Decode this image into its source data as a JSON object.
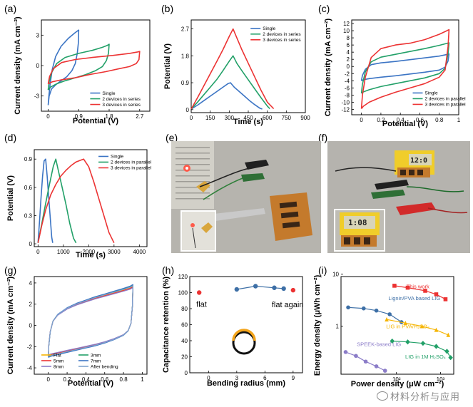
{
  "panel_letters": [
    "(a)",
    "(b)",
    "(c)",
    "(d)",
    "(e)",
    "(f)",
    "(g)",
    "(h)",
    "(i)"
  ],
  "photos": {
    "f_timer_display": "12:0",
    "f_inset_display": "1:08"
  },
  "watermark": "材料分析与应用",
  "colors": {
    "blue": "#3b74c4",
    "green": "#22a068",
    "red": "#ec3333",
    "orange": "#f5b400",
    "purple": "#8b7cc8",
    "dark": "#333333"
  },
  "chart_data": [
    {
      "id": "a",
      "type": "line",
      "xlabel": "Potential (V)",
      "ylabel": "Current density (mA cm⁻²)",
      "xlim": [
        -0.2,
        3.0
      ],
      "ylim": [
        -4.5,
        4.5
      ],
      "xticks": [
        0.0,
        0.9,
        1.8,
        2.7
      ],
      "yticks": [
        -3.0,
        0.0,
        3.0
      ],
      "legend": [
        "Single",
        "2 devices in series",
        "3 devices in series"
      ],
      "legend_position": "bottom-right",
      "series": [
        {
          "name": "Single",
          "color": "#3b74c4",
          "x": [
            0.0,
            0.02,
            0.06,
            0.12,
            0.22,
            0.38,
            0.6,
            0.78,
            0.88,
            0.9,
            0.89,
            0.86,
            0.8,
            0.7,
            0.55,
            0.38,
            0.22,
            0.1,
            0.03,
            0.0
          ],
          "y": [
            -3.9,
            -3.0,
            -1.8,
            -0.4,
            0.9,
            1.9,
            2.7,
            3.2,
            3.45,
            3.5,
            2.2,
            1.2,
            0.2,
            -0.5,
            -1.1,
            -1.5,
            -1.9,
            -2.3,
            -3.0,
            -3.9
          ]
        },
        {
          "name": "2 devices in series",
          "color": "#22a068",
          "x": [
            0.0,
            0.03,
            0.1,
            0.25,
            0.5,
            0.9,
            1.3,
            1.6,
            1.75,
            1.8,
            1.78,
            1.72,
            1.6,
            1.4,
            1.1,
            0.8,
            0.5,
            0.25,
            0.08,
            0.0
          ],
          "y": [
            -2.4,
            -1.6,
            -0.7,
            0.2,
            0.8,
            1.2,
            1.5,
            1.8,
            2.0,
            2.1,
            1.2,
            0.5,
            -0.1,
            -0.5,
            -0.9,
            -1.2,
            -1.5,
            -1.8,
            -2.1,
            -2.4
          ]
        },
        {
          "name": "3 devices in series",
          "color": "#ec3333",
          "x": [
            0.0,
            0.04,
            0.15,
            0.4,
            0.8,
            1.3,
            1.9,
            2.4,
            2.65,
            2.7,
            2.68,
            2.6,
            2.4,
            2.1,
            1.7,
            1.2,
            0.8,
            0.4,
            0.12,
            0.0
          ],
          "y": [
            -1.8,
            -1.1,
            -0.3,
            0.3,
            0.6,
            0.8,
            1.0,
            1.2,
            1.35,
            1.4,
            0.6,
            0.2,
            -0.1,
            -0.3,
            -0.6,
            -0.9,
            -1.2,
            -1.4,
            -1.6,
            -1.8
          ]
        }
      ]
    },
    {
      "id": "b",
      "type": "line",
      "xlabel": "Time (s)",
      "ylabel": "Potential (V)",
      "xlim": [
        0,
        900
      ],
      "ylim": [
        -0.1,
        3.0
      ],
      "xticks": [
        0,
        150,
        300,
        450,
        600,
        750,
        900
      ],
      "yticks": [
        0.0,
        0.9,
        1.8,
        2.7
      ],
      "legend": [
        "Single",
        "2 devices in series",
        "3 devices in series"
      ],
      "legend_position": "top-right",
      "series": [
        {
          "name": "Single",
          "color": "#3b74c4",
          "x": [
            0,
            50,
            100,
            150,
            200,
            250,
            290,
            310,
            340,
            380,
            420,
            460,
            500,
            540,
            560
          ],
          "y": [
            0.02,
            0.15,
            0.3,
            0.45,
            0.6,
            0.75,
            0.87,
            0.9,
            0.75,
            0.6,
            0.45,
            0.3,
            0.17,
            0.05,
            0.02
          ]
        },
        {
          "name": "2 devices in series",
          "color": "#22a068",
          "x": [
            0,
            50,
            100,
            150,
            200,
            250,
            300,
            330,
            360,
            400,
            450,
            500,
            550,
            600,
            620
          ],
          "y": [
            0.02,
            0.25,
            0.5,
            0.75,
            1.0,
            1.3,
            1.62,
            1.8,
            1.55,
            1.3,
            1.0,
            0.7,
            0.4,
            0.12,
            0.03
          ]
        },
        {
          "name": "3 devices in series",
          "color": "#ec3333",
          "x": [
            0,
            50,
            100,
            150,
            200,
            250,
            300,
            330,
            360,
            400,
            450,
            500,
            550,
            600,
            650
          ],
          "y": [
            0.02,
            0.4,
            0.8,
            1.2,
            1.6,
            2.0,
            2.45,
            2.7,
            2.4,
            2.0,
            1.55,
            1.1,
            0.65,
            0.25,
            0.03
          ]
        }
      ]
    },
    {
      "id": "c",
      "type": "line",
      "xlabel": "Potential (V)",
      "ylabel": "Current density (mA cm⁻²)",
      "xlim": [
        -0.1,
        1.0
      ],
      "ylim": [
        -13.5,
        13.0
      ],
      "xticks": [
        0.0,
        0.2,
        0.4,
        0.6,
        0.8,
        1.0
      ],
      "yticks": [
        -12,
        -10,
        -8,
        -6,
        -4,
        -2,
        0,
        2,
        4,
        6,
        8,
        10,
        12
      ],
      "legend": [
        "Single",
        "2 devices in parallel",
        "3 devices in parallel"
      ],
      "legend_position": "bottom-right",
      "series": [
        {
          "name": "Single",
          "color": "#3b74c4",
          "x": [
            0.0,
            0.01,
            0.04,
            0.1,
            0.2,
            0.35,
            0.5,
            0.65,
            0.8,
            0.87,
            0.9,
            0.89,
            0.86,
            0.8,
            0.65,
            0.5,
            0.35,
            0.2,
            0.08,
            0.02,
            0.0
          ],
          "y": [
            -4.0,
            -2.5,
            -0.8,
            0.5,
            1.0,
            1.4,
            1.9,
            2.4,
            2.9,
            3.3,
            3.5,
            1.5,
            -0.2,
            -1.0,
            -1.6,
            -2.1,
            -2.6,
            -3.0,
            -3.4,
            -3.7,
            -4.0
          ]
        },
        {
          "name": "2 devices in parallel",
          "color": "#22a068",
          "x": [
            0.0,
            0.01,
            0.04,
            0.1,
            0.2,
            0.35,
            0.5,
            0.65,
            0.8,
            0.87,
            0.9,
            0.89,
            0.86,
            0.8,
            0.65,
            0.5,
            0.35,
            0.2,
            0.08,
            0.02,
            0.0
          ],
          "y": [
            -7.5,
            -5.0,
            -1.5,
            1.3,
            2.6,
            3.4,
            4.2,
            5.0,
            5.9,
            6.4,
            6.6,
            3.5,
            -0.5,
            -2.0,
            -3.2,
            -4.0,
            -4.8,
            -5.6,
            -6.5,
            -7.1,
            -7.5
          ]
        },
        {
          "name": "3 devices in parallel",
          "color": "#ec3333",
          "x": [
            0.0,
            0.01,
            0.04,
            0.1,
            0.2,
            0.35,
            0.5,
            0.65,
            0.8,
            0.87,
            0.9,
            0.89,
            0.86,
            0.8,
            0.65,
            0.5,
            0.35,
            0.2,
            0.08,
            0.02,
            0.0
          ],
          "y": [
            -11.8,
            -8.0,
            -3.0,
            2.5,
            5.0,
            6.0,
            6.5,
            7.5,
            9.0,
            9.9,
            10.3,
            5.5,
            -1.0,
            -3.0,
            -4.8,
            -6.0,
            -7.2,
            -8.6,
            -10.0,
            -11.1,
            -11.8
          ]
        }
      ]
    },
    {
      "id": "d",
      "type": "line",
      "xlabel": "Time (s)",
      "ylabel": "Potential (V)",
      "xlim": [
        -150,
        4300
      ],
      "ylim": [
        -0.03,
        1.0
      ],
      "xticks": [
        0,
        1000,
        2000,
        3000,
        4000
      ],
      "yticks": [
        0.0,
        0.3,
        0.6,
        0.9
      ],
      "legend": [
        "Single",
        "2 devices in parallel",
        "3 devices in parallel"
      ],
      "legend_position": "top-right",
      "series": [
        {
          "name": "Single",
          "color": "#3b74c4",
          "x": [
            0,
            60,
            120,
            180,
            240,
            300,
            360,
            420,
            480,
            540,
            580
          ],
          "y": [
            0.01,
            0.25,
            0.5,
            0.72,
            0.88,
            0.9,
            0.72,
            0.5,
            0.28,
            0.07,
            0.01
          ]
        },
        {
          "name": "2 devices in parallel",
          "color": "#22a068",
          "x": [
            0,
            150,
            300,
            450,
            600,
            700,
            800,
            950,
            1100,
            1250,
            1400,
            1500
          ],
          "y": [
            0.01,
            0.22,
            0.43,
            0.63,
            0.82,
            0.9,
            0.78,
            0.6,
            0.42,
            0.22,
            0.06,
            0.01
          ]
        },
        {
          "name": "3 devices in parallel",
          "color": "#ec3333",
          "x": [
            0,
            150,
            300,
            500,
            700,
            900,
            1100,
            1300,
            1500,
            1700,
            1800,
            2000,
            2200,
            2400,
            2600,
            2800,
            3000
          ],
          "y": [
            0.01,
            0.2,
            0.36,
            0.52,
            0.63,
            0.72,
            0.78,
            0.83,
            0.87,
            0.89,
            0.9,
            0.82,
            0.66,
            0.48,
            0.3,
            0.12,
            0.01
          ]
        }
      ]
    },
    {
      "id": "g",
      "type": "line",
      "xlabel": "Potential (V)",
      "ylabel": "Current density (mA cm⁻²)",
      "xlim": [
        -0.15,
        1.05
      ],
      "ylim": [
        -4.6,
        4.6
      ],
      "xticks": [
        0.0,
        0.2,
        0.4,
        0.6,
        0.8,
        1.0
      ],
      "yticks": [
        -4.0,
        -2.0,
        0.0,
        2.0,
        4.0
      ],
      "legend": [
        "Flat",
        "3mm",
        "5mm",
        "7mm",
        "8mm",
        "After bending"
      ],
      "legend_position": "bottom",
      "series": [
        {
          "name": "Flat",
          "color": "#f5b400",
          "scale": 1.0
        },
        {
          "name": "3mm",
          "color": "#22a068",
          "scale": 1.02
        },
        {
          "name": "5mm",
          "color": "#ec3333",
          "scale": 0.98
        },
        {
          "name": "7mm",
          "color": "#3b74c4",
          "scale": 1.04
        },
        {
          "name": "8mm",
          "color": "#8b7cc8",
          "scale": 0.96
        },
        {
          "name": "After bending",
          "color": "#7fa4ce",
          "scale": 1.01
        }
      ],
      "loop_template": {
        "x": [
          0.0,
          0.005,
          0.02,
          0.05,
          0.1,
          0.2,
          0.3,
          0.4,
          0.5,
          0.6,
          0.7,
          0.8,
          0.87,
          0.9,
          0.895,
          0.88,
          0.85,
          0.8,
          0.7,
          0.6,
          0.5,
          0.4,
          0.3,
          0.2,
          0.1,
          0.05,
          0.02,
          0.0
        ],
        "y": [
          -2.9,
          -1.9,
          -0.6,
          0.4,
          1.0,
          1.6,
          2.0,
          2.3,
          2.6,
          2.85,
          3.1,
          3.35,
          3.55,
          3.7,
          1.8,
          0.2,
          -0.5,
          -0.9,
          -1.3,
          -1.6,
          -1.85,
          -2.05,
          -2.25,
          -2.45,
          -2.65,
          -2.75,
          -2.82,
          -2.9
        ]
      }
    },
    {
      "id": "h",
      "type": "scatter",
      "xlabel": "Bending radius (mm)",
      "ylabel": "Capacitance retention (%)",
      "xlim": [
        -2,
        10
      ],
      "ylim": [
        0,
        120
      ],
      "xticks": [
        0,
        3,
        6,
        9
      ],
      "yticks": [
        0,
        20,
        40,
        60,
        80,
        100,
        120
      ],
      "annotations": [
        "flat",
        "flat again"
      ],
      "series": [
        {
          "name": "flat",
          "color": "#ec3333",
          "x": [
            -1
          ],
          "y": [
            100
          ]
        },
        {
          "name": "bending",
          "color": "#3d6fa6",
          "x": [
            3,
            5,
            7,
            8
          ],
          "y": [
            104,
            108,
            106,
            105
          ]
        },
        {
          "name": "flat again",
          "color": "#ec3333",
          "x": [
            9
          ],
          "y": [
            103
          ]
        }
      ]
    },
    {
      "id": "i",
      "type": "scatter",
      "xlabel": "Power density (μW cm⁻²)",
      "ylabel": "Energy density (μWh cm⁻²)",
      "xscale": "log",
      "yscale": "log",
      "xlim": [
        5.5,
        2000
      ],
      "ylim": [
        0.12,
        9
      ],
      "xtick_labels": [
        "10²",
        "10³"
      ],
      "xticks": [
        100,
        1000
      ],
      "ytick_labels": [
        "1",
        "10"
      ],
      "yticks": [
        1,
        10
      ],
      "series": [
        {
          "name": "This work",
          "color": "#ec3333",
          "marker": "square",
          "x": [
            90,
            180,
            450,
            800,
            1300
          ],
          "y": [
            6.0,
            5.5,
            4.8,
            4.1,
            3.3
          ]
        },
        {
          "name": "Lignin/PVA based LIG",
          "color": "#3d6fa6",
          "marker": "circle",
          "x": [
            8,
            18,
            35,
            70,
            130
          ],
          "y": [
            2.3,
            2.2,
            2.0,
            1.7,
            1.2
          ]
        },
        {
          "name": "LIG in PVA/H₂SO₄",
          "color": "#f5b400",
          "marker": "triangle",
          "x": [
            60,
            160,
            380,
            800,
            1500
          ],
          "y": [
            1.35,
            1.15,
            1.0,
            0.85,
            0.68
          ]
        },
        {
          "name": "LIG in 1M H₂SO₄",
          "color": "#22a068",
          "marker": "diamond",
          "x": [
            80,
            180,
            400,
            800,
            1400,
            1700
          ],
          "y": [
            0.52,
            0.5,
            0.47,
            0.41,
            0.33,
            0.25
          ]
        },
        {
          "name": "SPEEK-based LIG",
          "color": "#8b7cc8",
          "marker": "circle",
          "x": [
            7,
            12,
            20,
            35,
            55
          ],
          "y": [
            0.32,
            0.27,
            0.21,
            0.17,
            0.14
          ]
        }
      ]
    }
  ]
}
